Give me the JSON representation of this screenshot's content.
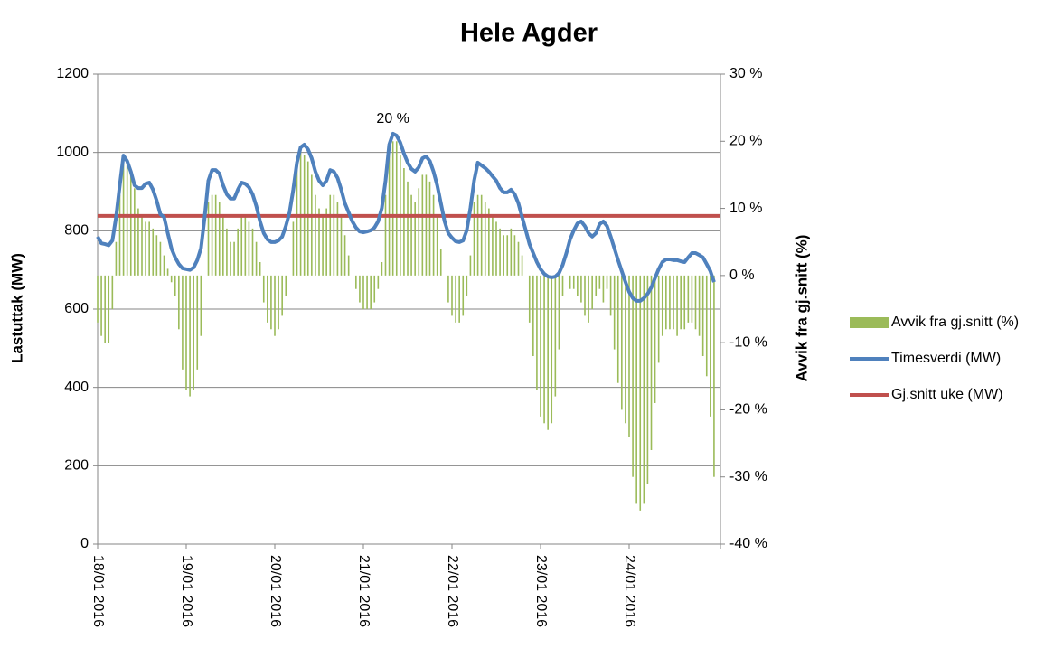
{
  "chart_data": {
    "type": "combo",
    "title": "Hele Agder",
    "y_label": "Lastuttak (MW)",
    "y2_label": "Avvik fra gj.snitt (%)",
    "ylim": [
      0,
      1200
    ],
    "yticks": [
      0,
      200,
      400,
      600,
      800,
      1000,
      1200
    ],
    "y2lim": [
      -40,
      30
    ],
    "y2ticks": [
      {
        "value": -40,
        "label": "-40 %"
      },
      {
        "value": -30,
        "label": "-30 %"
      },
      {
        "value": -20,
        "label": "-20 %"
      },
      {
        "value": -10,
        "label": "-10 %"
      },
      {
        "value": 0,
        "label": "0 %"
      },
      {
        "value": 10,
        "label": "10 %"
      },
      {
        "value": 20,
        "label": "20 %"
      },
      {
        "value": 30,
        "label": "30 %"
      }
    ],
    "grid": true,
    "legend": "right",
    "categories": [
      "18/01 2016",
      null,
      null,
      null,
      null,
      null,
      null,
      null,
      null,
      null,
      null,
      null,
      null,
      null,
      null,
      null,
      null,
      null,
      null,
      null,
      null,
      null,
      null,
      null,
      "19/01 2016",
      null,
      null,
      null,
      null,
      null,
      null,
      null,
      null,
      null,
      null,
      null,
      null,
      null,
      null,
      null,
      null,
      null,
      null,
      null,
      null,
      null,
      null,
      null,
      "20/01 2016",
      null,
      null,
      null,
      null,
      null,
      null,
      null,
      null,
      null,
      null,
      null,
      null,
      null,
      null,
      null,
      null,
      null,
      null,
      null,
      null,
      null,
      null,
      null,
      "21/01 2016",
      null,
      null,
      null,
      null,
      null,
      null,
      null,
      null,
      null,
      null,
      null,
      null,
      null,
      null,
      null,
      null,
      null,
      null,
      null,
      null,
      null,
      null,
      null,
      "22/01 2016",
      null,
      null,
      null,
      null,
      null,
      null,
      null,
      null,
      null,
      null,
      null,
      null,
      null,
      null,
      null,
      null,
      null,
      null,
      null,
      null,
      null,
      null,
      null,
      "23/01 2016",
      null,
      null,
      null,
      null,
      null,
      null,
      null,
      null,
      null,
      null,
      null,
      null,
      null,
      null,
      null,
      null,
      null,
      null,
      null,
      null,
      null,
      null,
      null,
      "24/01 2016",
      null,
      null,
      null,
      null,
      null,
      null,
      null,
      null,
      null,
      null,
      null,
      null,
      null,
      null,
      null,
      null,
      null,
      null,
      null,
      null,
      null,
      null,
      null
    ],
    "series": [
      {
        "name": "Avvik fra gj.snitt (%)",
        "type": "bar",
        "axis": "y2",
        "color": "#9bbb59",
        "values": [
          -7,
          -9,
          -10,
          -10,
          -5,
          5,
          12,
          18,
          17,
          15,
          13,
          10,
          9,
          8,
          8,
          7,
          6,
          5,
          3,
          1,
          -1,
          -3,
          -8,
          -14,
          -17,
          -18,
          -17,
          -14,
          -9,
          0,
          11,
          12,
          12,
          11,
          9,
          7,
          5,
          5,
          7,
          9,
          9,
          8,
          7,
          5,
          2,
          -4,
          -7,
          -8,
          -9,
          -8,
          -6,
          -3,
          0,
          8,
          16,
          19,
          18,
          17,
          15,
          12,
          10,
          9,
          10,
          12,
          12,
          11,
          9,
          6,
          3,
          0,
          -2,
          -4,
          -5,
          -5,
          -5,
          -4,
          -2,
          2,
          12,
          18,
          20,
          20,
          18,
          16,
          14,
          12,
          11,
          13,
          15,
          15,
          14,
          12,
          9,
          4,
          0,
          -4,
          -6,
          -7,
          -7,
          -6,
          -3,
          3,
          11,
          12,
          12,
          11,
          10,
          9,
          8,
          7,
          6,
          6,
          7,
          6,
          5,
          3,
          0,
          -7,
          -12,
          -17,
          -21,
          -22,
          -23,
          -22,
          -18,
          -11,
          -3,
          0,
          -2,
          -2,
          -3,
          -4,
          -6,
          -7,
          -5,
          -3,
          -2,
          -4,
          -2,
          -6,
          -11,
          -16,
          -20,
          -22,
          -24,
          -30,
          -34,
          -35,
          -34,
          -31,
          -26,
          -19,
          -13,
          -9,
          -8,
          -8,
          -8,
          -9,
          -8,
          -8,
          -7,
          -7,
          -8,
          -9,
          -12,
          -15,
          -21,
          -30
        ],
        "value_labels": [
          null,
          null,
          null,
          null,
          null,
          null,
          null,
          null,
          null,
          null,
          null,
          null,
          null,
          null,
          null,
          null,
          null,
          null,
          null,
          null,
          null,
          null,
          null,
          null,
          null,
          null,
          null,
          null,
          null,
          null,
          null,
          null,
          null,
          null,
          null,
          null,
          null,
          null,
          null,
          null,
          null,
          null,
          null,
          null,
          null,
          null,
          null,
          null,
          null,
          null,
          null,
          null,
          null,
          null,
          null,
          null,
          null,
          null,
          null,
          null,
          null,
          null,
          null,
          null,
          null,
          null,
          null,
          null,
          null,
          null,
          null,
          null,
          null,
          null,
          null,
          null,
          null,
          null,
          null,
          null,
          "20 %",
          null,
          null,
          null,
          null,
          null,
          null,
          null,
          null,
          null,
          null,
          null,
          null,
          null,
          null,
          null,
          null,
          null,
          null,
          null,
          null,
          null,
          null,
          null,
          null,
          null,
          null,
          null,
          null,
          null,
          null,
          null,
          null,
          null,
          null,
          null,
          null,
          null,
          null,
          null,
          null,
          null,
          null,
          null,
          null,
          null,
          null,
          null,
          null,
          null,
          null,
          null,
          null,
          null,
          null,
          null,
          null,
          null,
          null,
          null,
          null,
          null,
          null,
          null,
          null,
          null,
          null,
          null,
          null,
          null,
          null,
          null,
          null,
          null,
          null,
          null,
          null,
          null,
          null,
          null,
          null,
          null,
          null,
          null,
          null,
          null,
          null,
          null
        ]
      },
      {
        "name": "Timesverdi (MW)",
        "type": "line",
        "color": "#4f81bd",
        "values": [
          785,
          768,
          766,
          763,
          775,
          835,
          916,
          992,
          978,
          951,
          916,
          909,
          909,
          920,
          923,
          905,
          877,
          842,
          835,
          794,
          755,
          732,
          715,
          704,
          702,
          700,
          706,
          725,
          755,
          835,
          928,
          955,
          955,
          946,
          916,
          893,
          882,
          882,
          905,
          923,
          920,
          911,
          893,
          863,
          824,
          794,
          778,
          771,
          771,
          775,
          785,
          812,
          847,
          905,
          974,
          1013,
          1020,
          1008,
          985,
          951,
          928,
          916,
          928,
          955,
          951,
          935,
          905,
          870,
          847,
          824,
          808,
          798,
          796,
          798,
          801,
          808,
          824,
          858,
          928,
          1020,
          1048,
          1043,
          1025,
          997,
          974,
          958,
          951,
          962,
          985,
          990,
          978,
          951,
          916,
          870,
          824,
          794,
          782,
          773,
          771,
          775,
          801,
          858,
          928,
          974,
          967,
          960,
          951,
          939,
          928,
          909,
          898,
          898,
          905,
          893,
          870,
          835,
          801,
          766,
          743,
          720,
          702,
          690,
          683,
          681,
          683,
          692,
          713,
          743,
          778,
          801,
          819,
          824,
          812,
          794,
          785,
          794,
          817,
          824,
          812,
          785,
          755,
          725,
          697,
          669,
          644,
          628,
          621,
          621,
          628,
          639,
          655,
          679,
          702,
          720,
          727,
          727,
          725,
          725,
          722,
          720,
          732,
          743,
          743,
          738,
          732,
          715,
          697,
          669
        ]
      },
      {
        "name": "Gj.snitt uke (MW)",
        "type": "hline",
        "color": "#c0504d",
        "value": 838
      }
    ]
  }
}
